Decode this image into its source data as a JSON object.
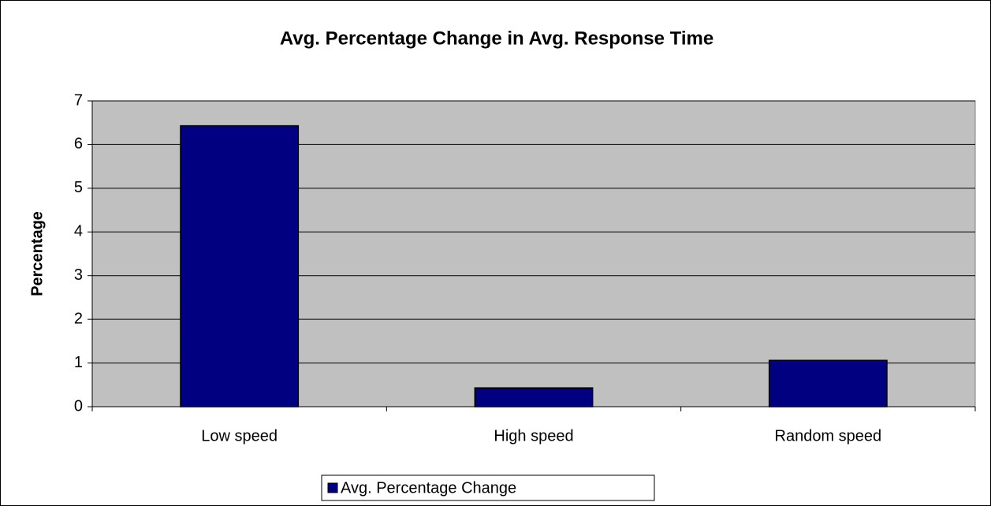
{
  "chart_data": {
    "type": "bar",
    "title": "Avg. Percentage Change in Avg. Response Time",
    "y_label": "Percentage",
    "categories": [
      "Low speed",
      "High speed",
      "Random speed"
    ],
    "series": [
      {
        "name": "Avg. Percentage Change",
        "color": "#000080",
        "values": [
          6.43,
          0.43,
          1.06
        ]
      }
    ],
    "ylim": [
      0,
      7
    ],
    "yticks": [
      0,
      1,
      2,
      3,
      4,
      5,
      6,
      7
    ],
    "grid": true,
    "legend": "bottom"
  }
}
